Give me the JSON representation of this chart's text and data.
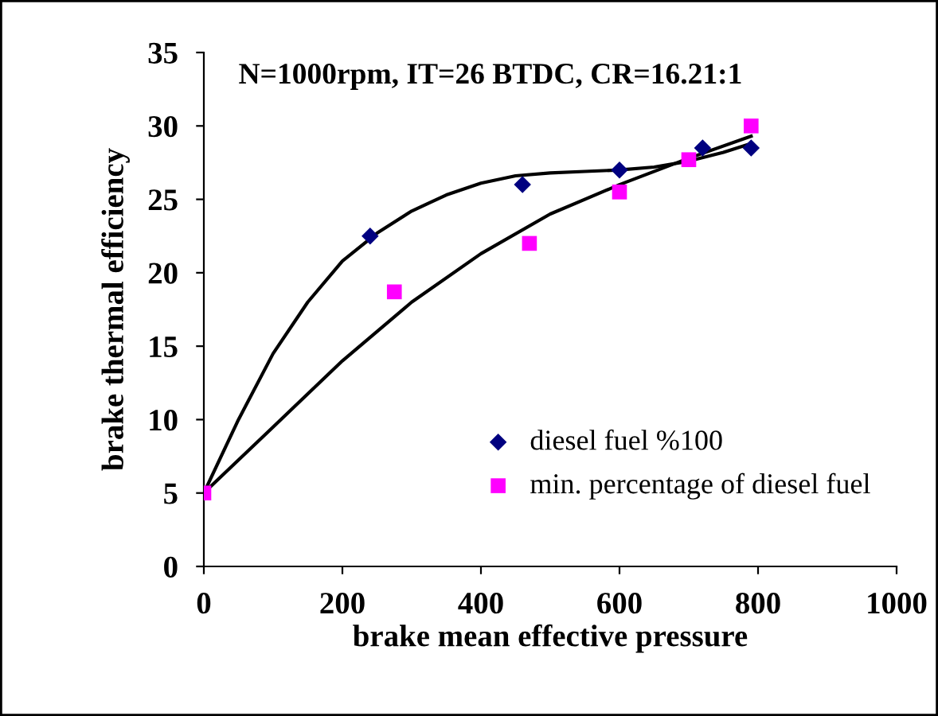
{
  "chart_data": {
    "type": "scatter",
    "title": "N=1000rpm, IT=26 BTDC, CR=16.21:1",
    "xlabel": "brake mean effective pressure",
    "ylabel": "brake thermal efficiency",
    "xlim": [
      0,
      1000
    ],
    "ylim": [
      0,
      35
    ],
    "xticks": [
      0,
      200,
      400,
      600,
      800,
      1000
    ],
    "yticks": [
      0,
      5,
      10,
      15,
      20,
      25,
      30,
      35
    ],
    "grid": false,
    "legend": "bottom right",
    "series": [
      {
        "name": "diesel fuel %100",
        "color": "#000080",
        "marker": "diamond",
        "x": [
          240,
          460,
          600,
          720,
          790
        ],
        "values": [
          22.5,
          26,
          27,
          28.5,
          28.5
        ]
      },
      {
        "name": "min. percentage of diesel fuel",
        "color": "#ff00ff",
        "marker": "square",
        "x": [
          0,
          275,
          470,
          600,
          700,
          790
        ],
        "values": [
          5,
          18.7,
          22,
          25.5,
          27.7,
          30
        ]
      },
      {
        "type": "line",
        "color": "#000000",
        "marker": "none",
        "x": [
          0,
          50,
          100,
          150,
          200,
          250,
          300,
          350,
          400,
          450,
          500,
          550,
          600,
          650,
          700,
          750,
          790
        ],
        "values": [
          5,
          10,
          14.5,
          18,
          20.8,
          22.7,
          24.2,
          25.3,
          26.1,
          26.6,
          26.8,
          26.9,
          27,
          27.2,
          27.6,
          28.2,
          28.8
        ]
      },
      {
        "type": "line",
        "color": "#000000",
        "marker": "none",
        "x": [
          0,
          100,
          200,
          300,
          400,
          500,
          600,
          700,
          790
        ],
        "values": [
          5,
          9.5,
          14,
          18,
          21.3,
          24,
          26,
          27.8,
          29.3
        ]
      }
    ]
  }
}
